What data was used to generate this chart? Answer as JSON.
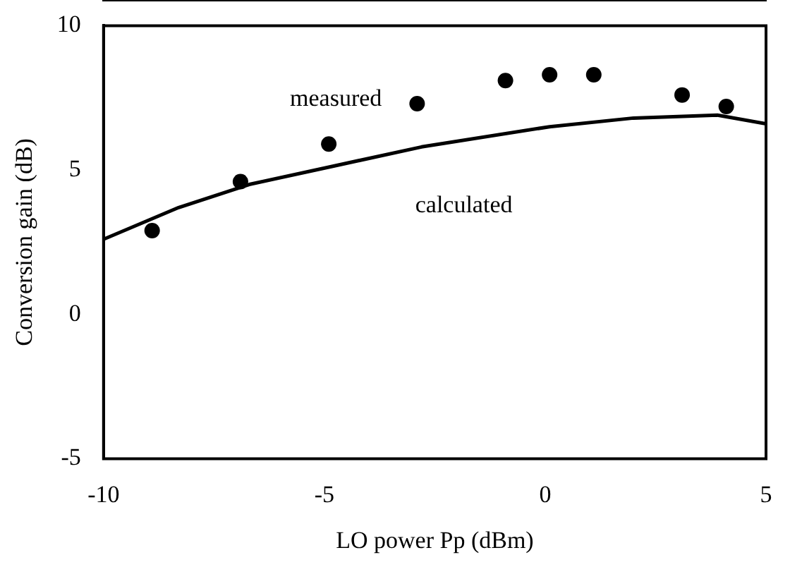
{
  "chart_data": {
    "type": "scatter",
    "xlabel": "LO power Pp (dBm)",
    "ylabel": "Conversion gain (dB)",
    "xlim": [
      -10,
      5
    ],
    "xticks": [
      -10,
      -5,
      0,
      5
    ],
    "ylim": [
      -5,
      10
    ],
    "yticks": [
      -5,
      0,
      5,
      10
    ],
    "grid": false,
    "legend": false,
    "marker": "circle",
    "series": [
      {
        "type": "scatter",
        "name": "measured",
        "color": "#000000",
        "x": [
          -8.9,
          -6.9,
          -4.9,
          -2.9,
          -0.9,
          0.1,
          1.1,
          3.1,
          4.1
        ],
        "values": [
          2.9,
          4.6,
          5.9,
          7.3,
          8.1,
          8.3,
          8.3,
          7.6,
          7.2
        ]
      },
      {
        "type": "line",
        "name": "calculated",
        "color": "#000000",
        "marker": "none",
        "x": [
          -10,
          -8.3,
          -6.7,
          -4.9,
          -2.8,
          0.1,
          2,
          3.9,
          5
        ],
        "values": [
          2.6,
          3.7,
          4.5,
          5.1,
          5.8,
          6.5,
          6.8,
          6.9,
          6.6
        ]
      }
    ]
  }
}
